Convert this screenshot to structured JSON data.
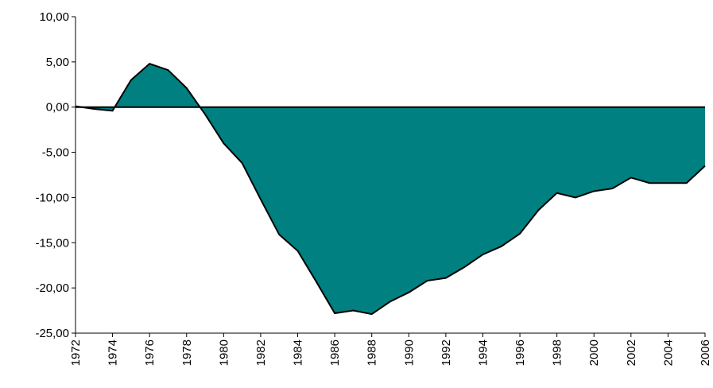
{
  "chart_data": {
    "type": "area",
    "x": [
      1972,
      1973,
      1974,
      1975,
      1976,
      1977,
      1978,
      1979,
      1980,
      1981,
      1982,
      1983,
      1984,
      1985,
      1986,
      1987,
      1988,
      1989,
      1990,
      1991,
      1992,
      1993,
      1994,
      1995,
      1996,
      1997,
      1998,
      1999,
      2000,
      2001,
      2002,
      2003,
      2004,
      2005,
      2006
    ],
    "values": [
      0.1,
      -0.2,
      -0.4,
      3.0,
      4.8,
      4.1,
      2.1,
      -0.8,
      -4.0,
      -6.2,
      -10.2,
      -14.1,
      -15.9,
      -19.3,
      -22.8,
      -22.5,
      -22.9,
      -21.5,
      -20.5,
      -19.2,
      -18.9,
      -17.7,
      -16.3,
      -15.4,
      -14.0,
      -11.4,
      -9.5,
      -10.0,
      -9.3,
      -9.0,
      -7.8,
      -8.4,
      -8.4,
      -8.4,
      -6.5
    ],
    "color": "#008080",
    "xlim": [
      1972,
      2006
    ],
    "xticks": [
      1972,
      1974,
      1976,
      1978,
      1980,
      1982,
      1984,
      1986,
      1988,
      1990,
      1992,
      1994,
      1996,
      1998,
      2000,
      2002,
      2004,
      2006
    ],
    "ylim": [
      -25,
      10
    ],
    "yticks": [
      {
        "value": -25,
        "label": "-25,00"
      },
      {
        "value": -20,
        "label": "-20,00"
      },
      {
        "value": -15,
        "label": "-15,00"
      },
      {
        "value": -10,
        "label": "-10,00"
      },
      {
        "value": -5,
        "label": "-5,00"
      },
      {
        "value": 0,
        "label": "0,00"
      },
      {
        "value": 5,
        "label": "5,00"
      },
      {
        "value": 10,
        "label": "10,00"
      }
    ],
    "grid": false
  }
}
